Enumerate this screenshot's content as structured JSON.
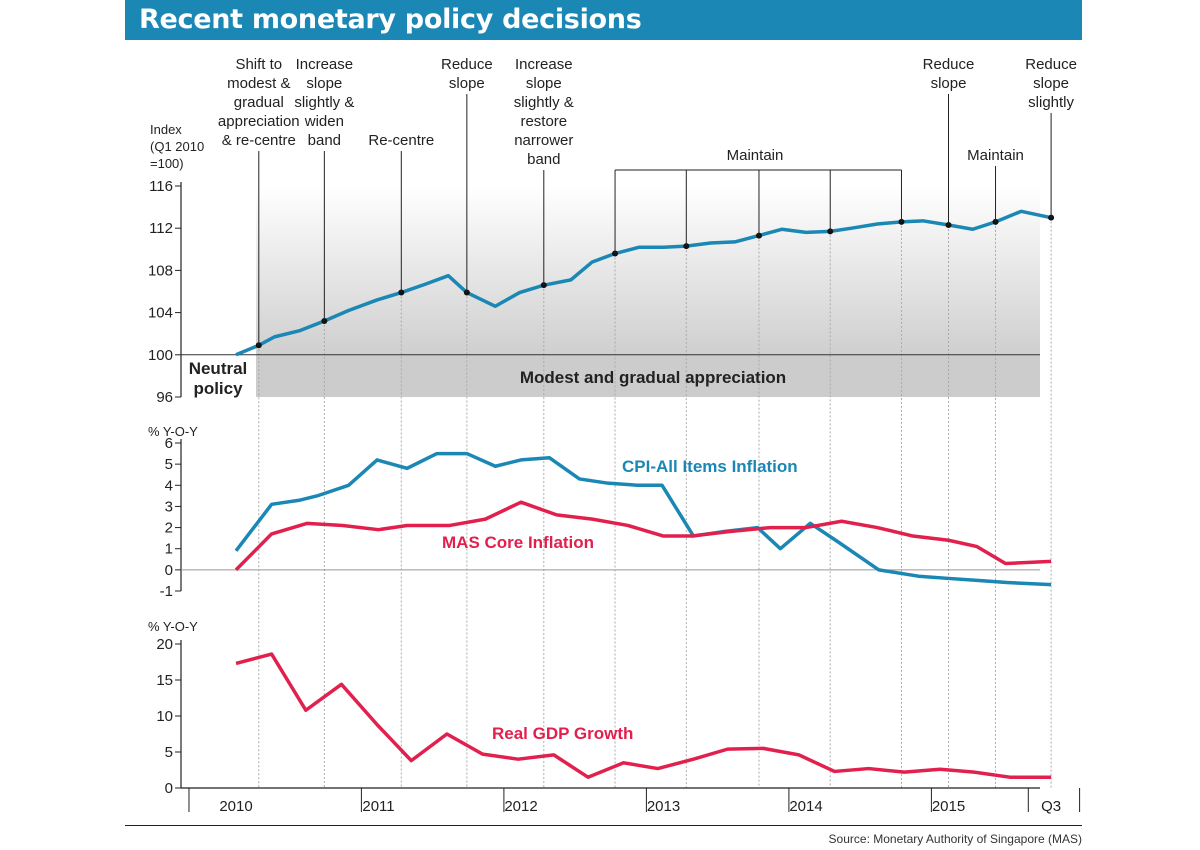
{
  "title": "Recent monetary policy decisions",
  "source": "Source: Monetary Authority of Singapore (MAS)",
  "colors": {
    "title_bg": "#1a87b5",
    "blue": "#1a87b5",
    "red": "#e2204e"
  },
  "chart_data": [
    {
      "type": "line",
      "ylabel": "Index (Q1 2010 =100)",
      "ylabel_lines": [
        "Index",
        "(Q1 2010",
        "=100)"
      ],
      "ylim": [
        96,
        116
      ],
      "yticks": [
        96,
        100,
        104,
        108,
        112,
        116
      ],
      "band_labels": {
        "neutral": [
          "Neutral",
          "policy"
        ],
        "appreciation": "Modest and gradual appreciation"
      },
      "series": [
        {
          "x": [
            2010.0,
            2010.16,
            2010.27,
            2010.45,
            2010.62,
            2010.79,
            2010.99,
            2011.16,
            2011.33,
            2011.49,
            2011.62,
            2011.82,
            2011.99,
            2012.16,
            2012.35,
            2012.5,
            2012.66,
            2012.83,
            2013.0,
            2013.16,
            2013.33,
            2013.5,
            2013.67,
            2013.83,
            2014.0,
            2014.17,
            2014.32,
            2014.5,
            2014.67,
            2014.82,
            2015.0,
            2015.17,
            2015.33,
            2015.51,
            2015.72
          ],
          "values": [
            100.0,
            100.9,
            101.7,
            102.3,
            103.2,
            104.2,
            105.2,
            105.9,
            106.7,
            107.5,
            105.9,
            104.6,
            105.9,
            106.6,
            107.1,
            108.8,
            109.6,
            110.2,
            110.2,
            110.3,
            110.6,
            110.7,
            111.3,
            111.9,
            111.6,
            111.7,
            112.0,
            112.4,
            112.6,
            112.7,
            112.3,
            111.9,
            112.6,
            113.6,
            113.0
          ]
        }
      ],
      "decisions": [
        {
          "x": 2010.16,
          "value": 100.9,
          "label": [
            "Shift to",
            "modest &",
            "gradual",
            "appreciation",
            "& re-centre"
          ]
        },
        {
          "x": 2010.62,
          "value": 103.2,
          "label": [
            "Increase",
            "slope",
            "slightly &",
            "widen",
            "band"
          ]
        },
        {
          "x": 2011.16,
          "value": 105.9,
          "label": [
            "Re-centre"
          ]
        },
        {
          "x": 2011.62,
          "value": 105.9,
          "label": [
            "Reduce",
            "slope"
          ]
        },
        {
          "x": 2012.16,
          "value": 106.6,
          "label": [
            "Increase",
            "slope",
            "slightly &",
            "restore",
            "narrower",
            "band"
          ]
        },
        {
          "x": 2012.66,
          "value": 109.6,
          "label": []
        },
        {
          "x": 2013.16,
          "value": 110.3,
          "label": []
        },
        {
          "x": 2013.67,
          "value": 111.3,
          "label": []
        },
        {
          "x": 2014.17,
          "value": 111.7,
          "label": []
        },
        {
          "x": 2014.67,
          "value": 112.6,
          "label": []
        },
        {
          "x": 2015.0,
          "value": 112.3,
          "label": [
            "Reduce",
            "slope"
          ]
        },
        {
          "x": 2015.33,
          "value": 112.6,
          "label": [
            "Maintain"
          ]
        },
        {
          "x": 2015.72,
          "value": 113.0,
          "label": [
            "Reduce",
            "slope",
            "slightly"
          ]
        }
      ],
      "maintain_group_label": "Maintain"
    },
    {
      "type": "line",
      "ylabel": "% Y-O-Y",
      "ylim": [
        -1,
        6
      ],
      "yticks": [
        -1,
        0,
        1,
        2,
        3,
        4,
        5,
        6
      ],
      "series": [
        {
          "name": "CPI-All Items Inflation",
          "color": "#1a87b5",
          "x": [
            2010.0,
            2010.25,
            2010.45,
            2010.57,
            2010.79,
            2010.99,
            2011.2,
            2011.41,
            2011.62,
            2011.82,
            2012.0,
            2012.2,
            2012.41,
            2012.61,
            2012.82,
            2012.99,
            2013.21,
            2013.41,
            2013.66,
            2013.82,
            2014.03,
            2014.23,
            2014.51,
            2014.79,
            2014.99,
            2015.2,
            2015.41,
            2015.72
          ],
          "values": [
            0.9,
            3.1,
            3.3,
            3.5,
            4.0,
            5.2,
            4.8,
            5.5,
            5.5,
            4.9,
            5.2,
            5.3,
            4.3,
            4.1,
            4.0,
            4.0,
            1.6,
            1.8,
            2.0,
            1.0,
            2.2,
            1.3,
            0.0,
            -0.3,
            -0.4,
            -0.5,
            -0.6,
            -0.7
          ]
        },
        {
          "name": "MAS Core Inflation",
          "color": "#e2204e",
          "x": [
            2010.0,
            2010.25,
            2010.5,
            2010.75,
            2011.0,
            2011.2,
            2011.5,
            2011.75,
            2012.0,
            2012.25,
            2012.5,
            2012.75,
            2013.0,
            2013.2,
            2013.45,
            2013.75,
            2014.0,
            2014.25,
            2014.5,
            2014.75,
            2015.0,
            2015.2,
            2015.4,
            2015.72
          ],
          "values": [
            0.0,
            1.7,
            2.2,
            2.1,
            1.9,
            2.1,
            2.1,
            2.4,
            3.2,
            2.6,
            2.4,
            2.1,
            1.6,
            1.6,
            1.8,
            2.0,
            2.0,
            2.3,
            2.0,
            1.6,
            1.4,
            1.1,
            0.3,
            0.4
          ]
        }
      ]
    },
    {
      "type": "line",
      "ylabel": "% Y-O-Y",
      "ylim": [
        0,
        20
      ],
      "yticks": [
        0,
        5,
        10,
        15,
        20
      ],
      "series": [
        {
          "name": "Real GDP Growth",
          "color": "#e2204e",
          "x": [
            2010.0,
            2010.25,
            2010.49,
            2010.74,
            2010.99,
            2011.23,
            2011.48,
            2011.73,
            2011.98,
            2012.23,
            2012.47,
            2012.72,
            2012.96,
            2013.21,
            2013.45,
            2013.7,
            2013.95,
            2014.2,
            2014.44,
            2014.69,
            2014.94,
            2015.18,
            2015.43,
            2015.72
          ],
          "values": [
            17.3,
            18.6,
            10.8,
            14.4,
            8.8,
            3.8,
            7.5,
            4.7,
            4.0,
            4.6,
            1.5,
            3.5,
            2.7,
            4.0,
            5.4,
            5.5,
            4.6,
            2.3,
            2.7,
            2.2,
            2.6,
            2.2,
            1.5,
            1.5
          ]
        }
      ]
    }
  ],
  "x_axis": {
    "labels": [
      "2010",
      "2011",
      "2012",
      "2013",
      "2014",
      "2015",
      "Q3"
    ]
  }
}
